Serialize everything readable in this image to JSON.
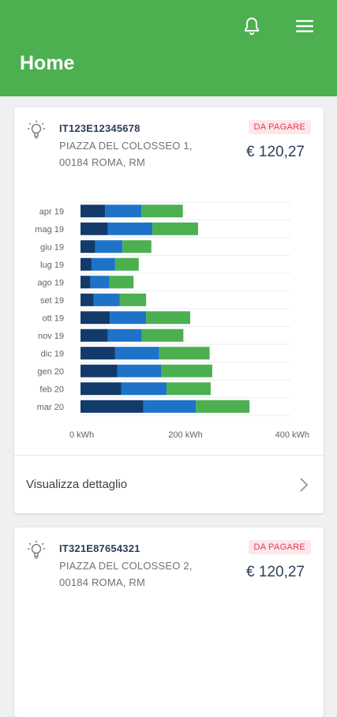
{
  "header": {
    "title": "Home",
    "bell_icon": "notification-bell-icon",
    "menu_icon": "hamburger-menu-icon",
    "color": "#4caf50"
  },
  "supplies": [
    {
      "code": "IT123E12345678",
      "address_line1": "PIAZZA DEL COLOSSEO 1,",
      "address_line2": "00184 ROMA, RM",
      "status": "DA PAGARE",
      "amount": "€ 120,27",
      "icon": "lightbulb-icon",
      "detail_label": "Visualizza dettaglio"
    },
    {
      "code": "IT321E87654321",
      "address_line1": "PIAZZA DEL COLOSSEO 2,",
      "address_line2": "00184 ROMA, RM",
      "status": "DA PAGARE",
      "amount": "€ 120,27",
      "icon": "lightbulb-icon"
    }
  ],
  "chart_data": {
    "type": "bar",
    "orientation": "horizontal",
    "stacked": true,
    "categories": [
      "apr 19",
      "mag 19",
      "giu 19",
      "lug 19",
      "ago 19",
      "set 19",
      "ott 19",
      "nov 19",
      "dic 19",
      "gen 20",
      "feb 20",
      "mar 20"
    ],
    "series": [
      {
        "color": "#123a6b",
        "values": [
          47,
          52,
          28,
          21,
          19,
          25,
          56,
          52,
          66,
          70,
          78,
          120
        ]
      },
      {
        "color": "#1e73c8",
        "values": [
          69,
          85,
          52,
          45,
          36,
          50,
          69,
          65,
          84,
          84,
          86,
          100
        ]
      },
      {
        "color": "#4caf50",
        "values": [
          79,
          87,
          55,
          45,
          46,
          50,
          84,
          79,
          96,
          97,
          84,
          102
        ]
      }
    ],
    "xlim": [
      0,
      400
    ],
    "x_ticks": [
      "0 kWh",
      "200 kWh",
      "400 kWh"
    ],
    "x_tick_values": [
      0,
      200,
      400
    ],
    "grid": true
  }
}
